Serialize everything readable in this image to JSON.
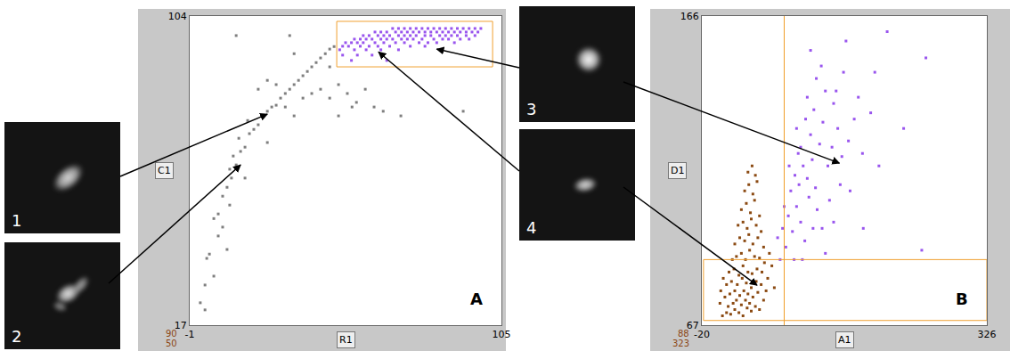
{
  "chart_data": [
    {
      "type": "scatter",
      "panel_label": "A",
      "xlabel": "R1",
      "ylabel": "C1",
      "xlim": [
        -1,
        105
      ],
      "ylim": [
        17,
        104
      ],
      "xticks": [
        -1,
        105
      ],
      "yticks": [
        17,
        104
      ],
      "grid": false,
      "marker": "square",
      "counts": [
        90,
        50
      ],
      "series": [
        {
          "color": "#7f7f7f",
          "x": [
            4.2,
            5.7,
            4.8,
            7.2,
            8.7,
            10.2,
            11.7,
            13.2,
            12.6,
            14.8,
            13.8,
            16.3,
            17.8,
            15.7,
            19.3,
            20.8,
            18.7,
            22.3,
            23.8,
            25.4,
            26.9,
            28.4,
            29.9,
            31.5,
            33,
            34.5,
            36,
            37.5,
            39,
            40.5,
            42,
            43.5,
            45.1,
            46.6,
            48.1,
            22.3,
            25.4,
            28.4,
            31.5,
            34.5,
            37.5,
            40.5,
            43.5,
            46.6,
            49.6,
            52.6,
            54.2,
            55.7,
            58.7,
            61.7,
            64.8,
            70.8,
            49.6,
            14.8,
            33,
            46.6,
            11.7,
            7.2,
            4.2,
            2.6,
            10.2,
            8.7,
            12.6,
            92,
            17.8,
            25.4,
            34.5
          ],
          "y": [
            21.3,
            37,
            35.8,
            47,
            48.3,
            53.3,
            55.8,
            58.4,
            60.9,
            62.1,
            64.6,
            65.9,
            67.1,
            69.6,
            70.9,
            72.1,
            74.6,
            73.4,
            75.9,
            77.2,
            78.4,
            78.9,
            80.9,
            82.2,
            83.4,
            84.7,
            85.9,
            87.2,
            88.4,
            89.7,
            90.9,
            92.2,
            93.4,
            94.7,
            95.4,
            83.4,
            85.9,
            84.7,
            78.4,
            75.9,
            80.9,
            82.2,
            83.4,
            80.9,
            84.7,
            82.2,
            78.4,
            79.7,
            83.4,
            78.4,
            77.2,
            75.9,
            75.9,
            98.5,
            98.5,
            89.7,
            38.3,
            30.8,
            28.3,
            23.3,
            44.6,
            42.1,
            50.8,
            77.2,
            58.4,
            68.4,
            93.4
          ]
        },
        {
          "color": "#9955ee",
          "x": [
            68,
            70,
            72,
            74,
            76,
            78,
            80,
            82,
            84,
            86,
            88,
            90,
            92,
            94,
            96,
            98,
            62,
            64,
            66,
            69,
            71,
            73,
            75,
            77,
            79,
            81,
            83,
            85,
            87,
            89,
            91,
            93,
            95,
            97,
            58,
            60,
            63,
            65,
            67,
            70,
            72,
            74,
            76,
            79,
            81,
            84,
            86,
            88,
            90,
            93,
            96,
            55,
            57,
            59,
            61,
            64,
            66,
            68,
            71,
            73,
            75,
            78,
            82,
            85,
            87,
            91,
            94,
            52,
            54,
            56,
            58,
            62,
            65,
            69,
            72,
            77,
            80,
            83,
            89,
            51,
            53,
            57,
            60,
            63,
            67,
            74,
            79,
            50,
            55,
            59,
            64,
            70,
            51,
            56,
            61,
            54,
            66
          ],
          "y": [
            100.5,
            100.5,
            100.5,
            100.5,
            100.5,
            100.5,
            100.5,
            100.5,
            100.5,
            100.5,
            100.5,
            100.5,
            100.5,
            100.5,
            100.5,
            100.5,
            99.5,
            99.5,
            99.5,
            99.5,
            99.5,
            99.5,
            99.5,
            99.5,
            99.5,
            99.5,
            99.5,
            99.5,
            99.5,
            99.5,
            99.5,
            99.5,
            99.5,
            99.5,
            98.5,
            98.5,
            98.5,
            98.5,
            98.5,
            98.5,
            98.5,
            98.5,
            98.5,
            98.5,
            98.5,
            98.5,
            98.5,
            98.5,
            98.5,
            98.5,
            98.5,
            97.5,
            97.5,
            97.5,
            97.5,
            97.5,
            97.5,
            97.5,
            97.5,
            97.5,
            97.5,
            97.5,
            97.5,
            97.5,
            97.5,
            97.5,
            97.5,
            96.5,
            96.5,
            96.5,
            96.5,
            96.5,
            96.5,
            96.5,
            96.5,
            96.5,
            96.5,
            96.5,
            96.5,
            95.5,
            95.5,
            95.5,
            95.5,
            95.5,
            95.5,
            95.5,
            95.5,
            94.5,
            94.5,
            94.5,
            94.5,
            94.5,
            93,
            93,
            93,
            91.5,
            91.5
          ]
        }
      ],
      "gates": [
        {
          "color": "#f0a030",
          "x": [
            49,
            102
          ],
          "y": [
            89.7,
            102.5
          ]
        }
      ]
    },
    {
      "type": "scatter",
      "panel_label": "B",
      "xlabel": "A1",
      "ylabel": "D1",
      "xlim": [
        -20,
        326
      ],
      "ylim": [
        67,
        166
      ],
      "xticks": [
        -20,
        326
      ],
      "yticks": [
        67,
        166
      ],
      "grid": false,
      "marker": "square",
      "counts": [
        88,
        323
      ],
      "series": [
        {
          "color": "#8b4a12",
          "x": [
            5,
            10,
            15,
            20,
            25,
            30,
            35,
            40,
            12,
            18,
            22,
            28,
            33,
            38,
            45,
            50,
            8,
            14,
            20,
            26,
            31,
            36,
            42,
            48,
            55,
            10,
            16,
            23,
            29,
            34,
            40,
            46,
            52,
            58,
            13,
            19,
            25,
            30,
            36,
            41,
            47,
            53,
            60,
            17,
            22,
            28,
            33,
            38,
            44,
            50,
            56,
            20,
            26,
            32,
            37,
            42,
            48,
            55,
            62,
            24,
            30,
            35,
            40,
            46,
            52,
            28,
            34,
            39,
            44,
            50,
            32,
            37,
            42,
            47,
            36,
            41,
            45,
            2,
            6,
            65,
            68,
            3
          ],
          "y": [
            70,
            71,
            70.5,
            72,
            71,
            70,
            72.5,
            71.5,
            73,
            74,
            75,
            73.5,
            75,
            74,
            73,
            72,
            76,
            77,
            78,
            76.5,
            78,
            77,
            76,
            77.5,
            75,
            80,
            81,
            80,
            82,
            80.5,
            79,
            81,
            80,
            78,
            84,
            85,
            83,
            86,
            84,
            83.5,
            85,
            84,
            82,
            88,
            89,
            90,
            88,
            91,
            89,
            88.5,
            87,
            93,
            95,
            94,
            96,
            93,
            95,
            92,
            90,
            99,
            100,
            98,
            101,
            99,
            97,
            104,
            106,
            103,
            107,
            102,
            110,
            112,
            109,
            113,
            116,
            118,
            115,
            74,
            82,
            86,
            79,
            78
          ]
        },
        {
          "color": "#9955ee",
          "x": [
            72,
            78,
            82,
            85,
            90,
            95,
            100,
            105,
            110,
            88,
            93,
            98,
            103,
            108,
            114,
            120,
            126,
            80,
            75,
            92,
            118,
            123,
            112,
            100,
            95,
            106,
            116,
            127,
            133,
            138,
            145,
            150,
            158,
            140,
            130,
            119,
            108,
            125,
            143,
            152,
            170,
            185,
            160,
            175,
            195,
            225,
            205,
            252,
            247,
            176,
            135,
            148,
            115,
            102,
            130,
            97,
            86,
            140,
            165,
            112,
            155,
            190
          ],
          "y": [
            95,
            98,
            92,
            102,
            97,
            105,
            100,
            94,
            108,
            110,
            115,
            112,
            118,
            114,
            120,
            104,
            98,
            105,
            88,
            88,
            111,
            125,
            128,
            124,
            130,
            133,
            136,
            132,
            118,
            124,
            130,
            121,
            126,
            138,
            142,
            146,
            140,
            150,
            142,
            148,
            140,
            135,
            110,
            122,
            118,
            130,
            161,
            152.6,
            91,
            98,
            107,
            112,
            98,
            88,
            90,
            122,
            118,
            100,
            133,
            155,
            158,
            148
          ]
        }
      ],
      "gates": [
        {
          "color": "#f0a030",
          "x": [
            -18,
            326
          ],
          "y": [
            68.5,
            88
          ]
        },
        {
          "color": "#f0a030",
          "x": [
            80,
            80
          ],
          "y": [
            67,
            166
          ]
        }
      ]
    }
  ],
  "images": [
    {
      "label": "1",
      "arrows": [
        {
          "chart": 0,
          "x": 25.4,
          "y": 76.4
        }
      ]
    },
    {
      "label": "2",
      "arrows": [
        {
          "chart": 0,
          "x": 16.3,
          "y": 62.1
        }
      ]
    },
    {
      "label": "3",
      "arrows": [
        {
          "chart": 0,
          "x": 83,
          "y": 94.7
        },
        {
          "chart": 1,
          "x": 147,
          "y": 118.9
        }
      ]
    },
    {
      "label": "4",
      "arrows": [
        {
          "chart": 0,
          "x": 63.2,
          "y": 93.9
        },
        {
          "chart": 1,
          "x": 47,
          "y": 79.8
        }
      ]
    }
  ]
}
